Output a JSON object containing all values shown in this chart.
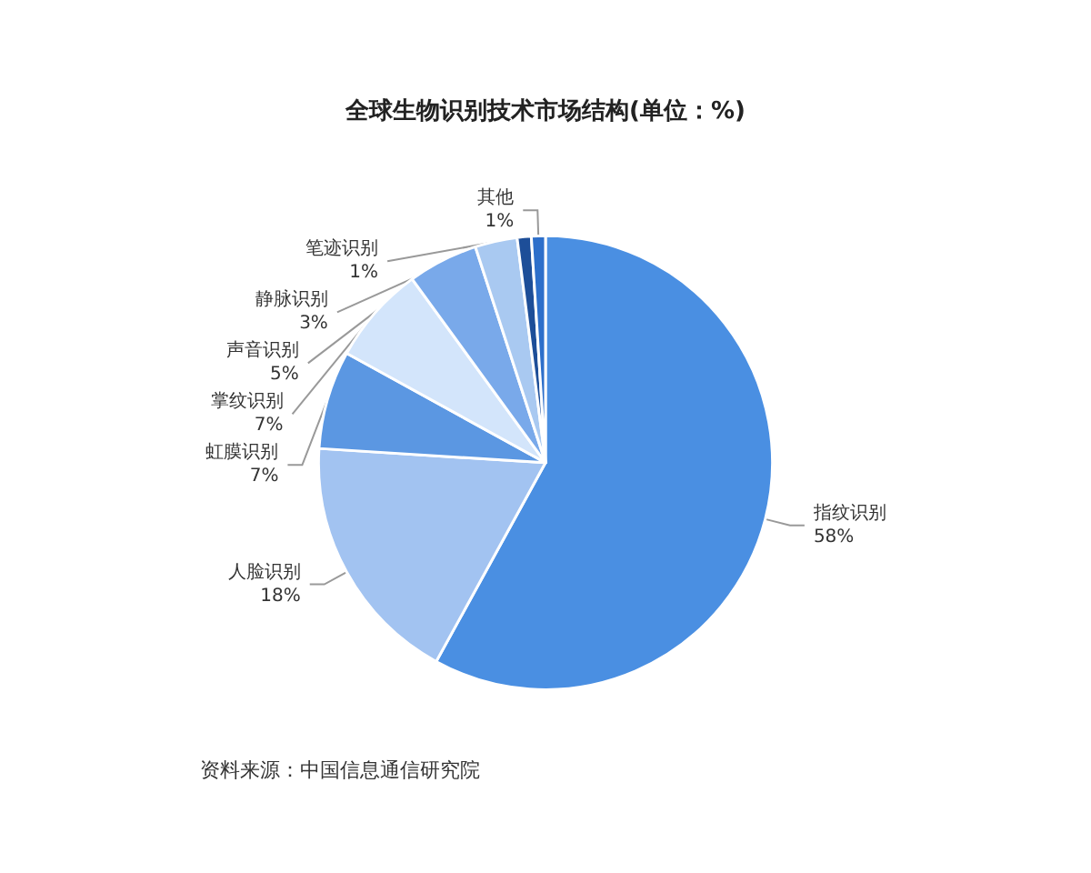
{
  "chart_data": {
    "type": "pie",
    "title": "全球生物识别技术市场结构(单位：%)",
    "categories": [
      "指纹识别",
      "人脸识别",
      "虹膜识别",
      "掌纹识别",
      "声音识别",
      "静脉识别",
      "笔迹识别",
      "其他"
    ],
    "values": [
      58,
      18,
      7,
      7,
      5,
      3,
      1,
      1
    ],
    "value_labels": [
      "58%",
      "18%",
      "7%",
      "7%",
      "5%",
      "3%",
      "1%",
      "1%"
    ],
    "colors": [
      "#4a8fe2",
      "#a2c3f1",
      "#5b97e2",
      "#d3e5fb",
      "#79a9ea",
      "#a9c9f1",
      "#1d4e98",
      "#2d6fca"
    ],
    "legend": false,
    "annotations": [
      "资料来源：中国信息通信研究院"
    ]
  }
}
